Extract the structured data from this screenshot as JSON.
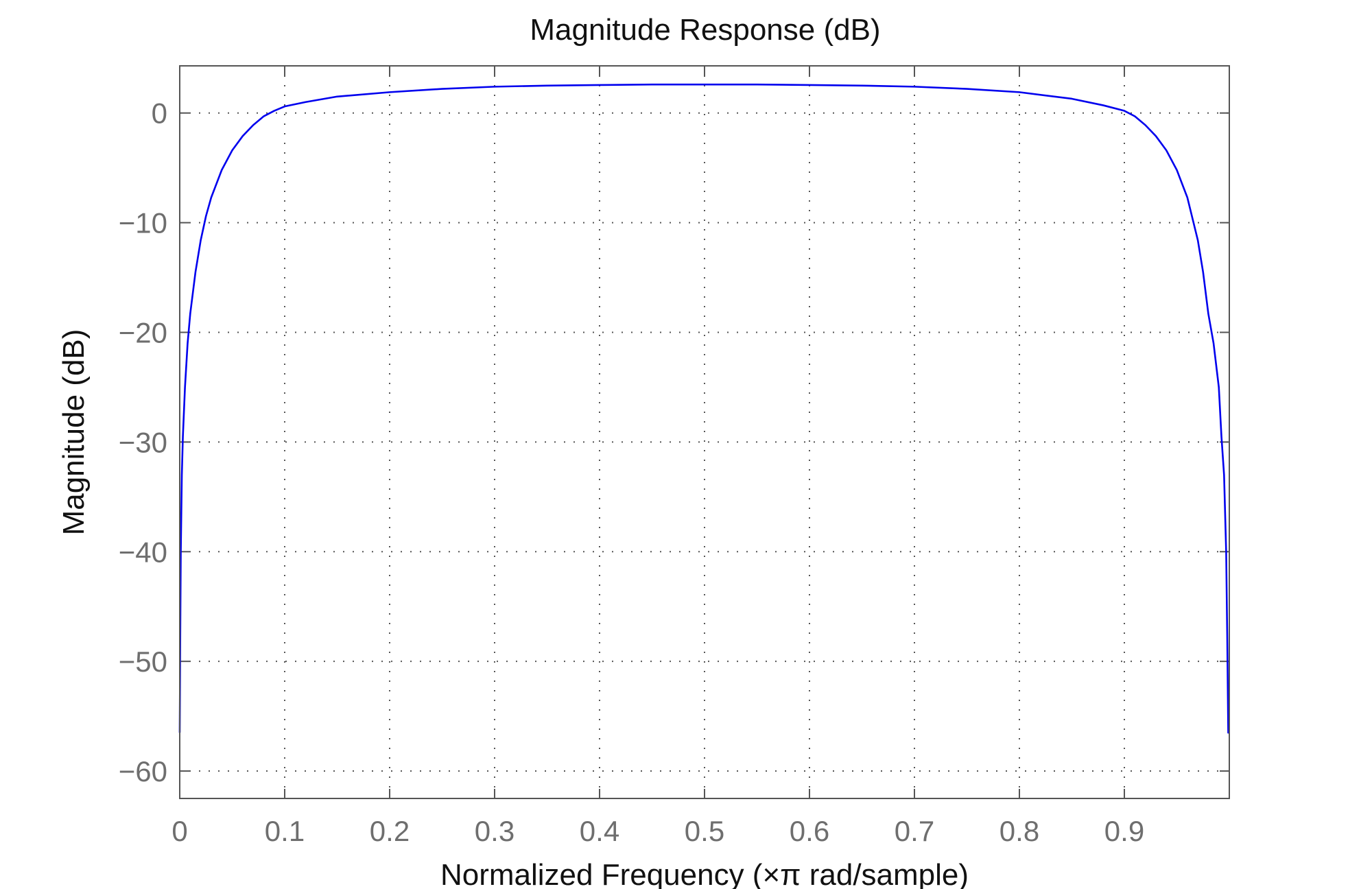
{
  "chart_data": {
    "type": "line",
    "title": "Magnitude Response (dB)",
    "xlabel": "Normalized Frequency (×π rad/sample)",
    "ylabel": "Magnitude (dB)",
    "xlim": [
      0,
      1
    ],
    "ylim": [
      -62.5,
      4.3
    ],
    "xticks": [
      0,
      0.1,
      0.2,
      0.3,
      0.4,
      0.5,
      0.6,
      0.7,
      0.8,
      0.9
    ],
    "xtick_labels": [
      "0",
      "0.1",
      "0.2",
      "0.3",
      "0.4",
      "0.5",
      "0.6",
      "0.7",
      "0.8",
      "0.9"
    ],
    "yticks": [
      0,
      -10,
      -20,
      -30,
      -40,
      -50,
      -60
    ],
    "ytick_labels": [
      "0",
      "−10",
      "−20",
      "−30",
      "−40",
      "−50",
      "−60"
    ],
    "grid": true,
    "colors": {
      "line": "#0000ee",
      "frame": "#555555",
      "tick_text": "#6e6e6e"
    },
    "series": [
      {
        "x": [
          0.0,
          0.0005,
          0.001,
          0.002,
          0.003,
          0.005,
          0.0075,
          0.01,
          0.015,
          0.02,
          0.025,
          0.03,
          0.04,
          0.05,
          0.06,
          0.07,
          0.08,
          0.09,
          0.1,
          0.12,
          0.15,
          0.2,
          0.25,
          0.3,
          0.35,
          0.4,
          0.45,
          0.5,
          0.55,
          0.6,
          0.65,
          0.7,
          0.75,
          0.8,
          0.85,
          0.88,
          0.9,
          0.91,
          0.92,
          0.93,
          0.94,
          0.95,
          0.96,
          0.97,
          0.975,
          0.98,
          0.985,
          0.99,
          0.9925,
          0.995,
          0.997,
          0.998,
          0.999,
          0.9995,
          1.0
        ],
        "y": [
          -56.5,
          -47.5,
          -40.0,
          -33.0,
          -29.5,
          -25.0,
          -21.0,
          -18.3,
          -14.5,
          -11.6,
          -9.4,
          -7.7,
          -5.2,
          -3.4,
          -2.1,
          -1.1,
          -0.3,
          0.2,
          0.6,
          1.0,
          1.5,
          1.9,
          2.2,
          2.4,
          2.5,
          2.55,
          2.6,
          2.6,
          2.6,
          2.55,
          2.5,
          2.4,
          2.2,
          1.9,
          1.3,
          0.7,
          0.2,
          -0.3,
          -1.1,
          -2.1,
          -3.4,
          -5.2,
          -7.7,
          -11.6,
          -14.5,
          -18.3,
          -21.0,
          -25.0,
          -29.5,
          -33.0,
          -40.0,
          -47.5,
          -56.5,
          -56.5,
          -56.5
        ]
      }
    ]
  }
}
